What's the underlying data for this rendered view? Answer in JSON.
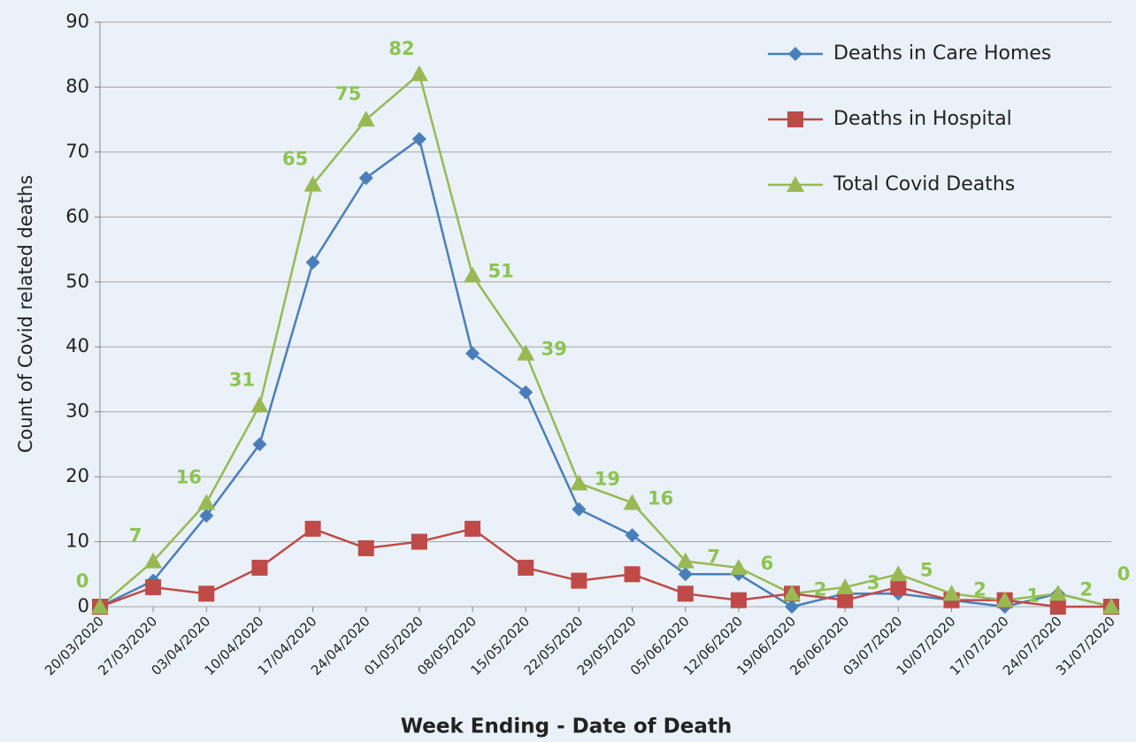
{
  "chart_data": {
    "type": "line",
    "x_label": "Week Ending - Date of Death",
    "y_label": "Count of Covid related deaths",
    "categories": [
      "20/03/2020",
      "27/03/2020",
      "03/04/2020",
      "10/04/2020",
      "17/04/2020",
      "24/04/2020",
      "01/05/2020",
      "08/05/2020",
      "15/05/2020",
      "22/05/2020",
      "29/05/2020",
      "05/06/2020",
      "12/06/2020",
      "19/06/2020",
      "26/06/2020",
      "03/07/2020",
      "10/07/2020",
      "17/07/2020",
      "24/07/2020",
      "31/07/2020"
    ],
    "series": [
      {
        "name": "Deaths in Care Homes",
        "color": "#4a7ebb",
        "marker": "diamond",
        "values": [
          0,
          4,
          14,
          25,
          53,
          66,
          72,
          39,
          33,
          15,
          11,
          5,
          5,
          0,
          2,
          2,
          1,
          0,
          2,
          0
        ]
      },
      {
        "name": "Deaths in Hospital",
        "color": "#be4b48",
        "marker": "square",
        "values": [
          0,
          3,
          2,
          6,
          12,
          9,
          10,
          12,
          6,
          4,
          5,
          2,
          1,
          2,
          1,
          3,
          1,
          1,
          0,
          0
        ]
      },
      {
        "name": "Total Covid Deaths",
        "color": "#98b954",
        "marker": "triangle",
        "data_labels": true,
        "label_color": "#8dc451",
        "values": [
          0,
          7,
          16,
          31,
          65,
          75,
          82,
          51,
          39,
          19,
          16,
          7,
          6,
          2,
          3,
          5,
          2,
          1,
          2,
          0
        ]
      }
    ],
    "ylim": [
      0,
      90
    ],
    "yticks": [
      0,
      10,
      20,
      30,
      40,
      50,
      60,
      70,
      80,
      90
    ],
    "grid": true,
    "legend": "top-right"
  }
}
